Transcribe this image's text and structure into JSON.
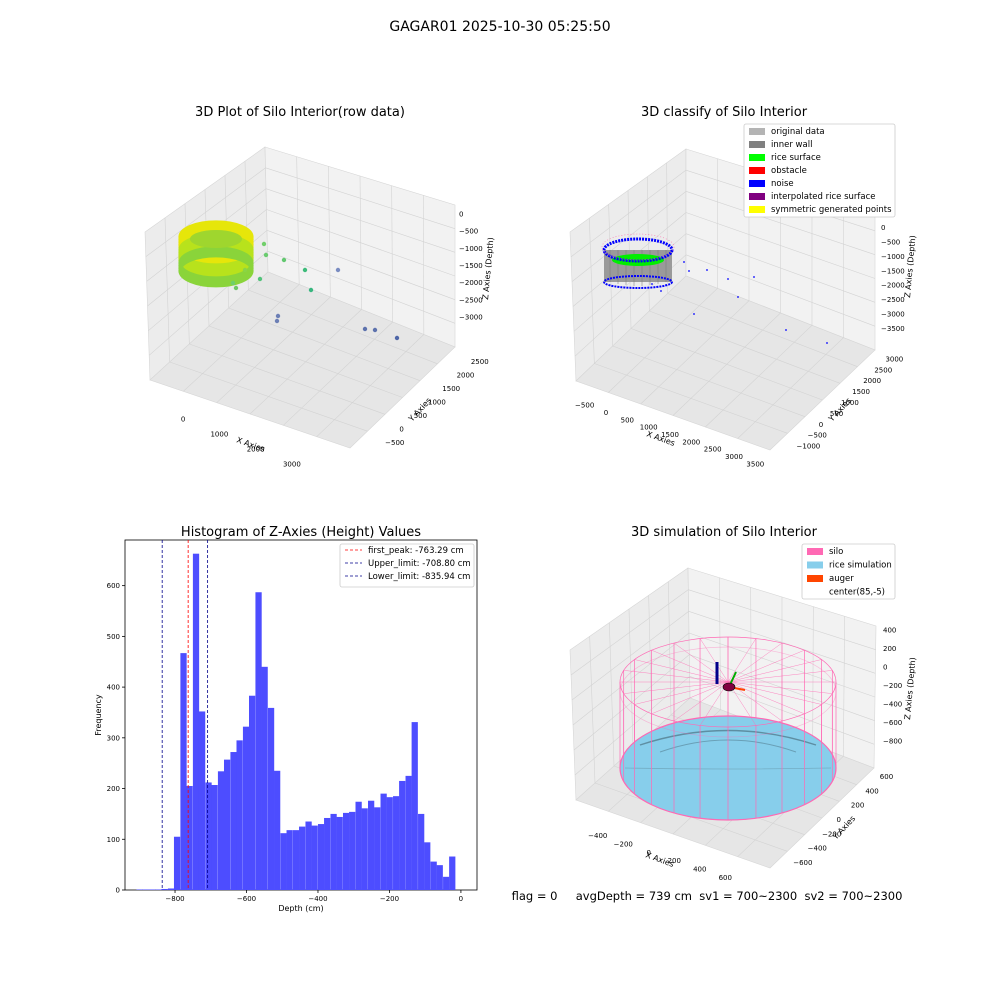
{
  "figure": {
    "title": "GAGAR01 2025-10-30 05:25:50",
    "footer": "flag = 0     avgDepth = 739 cm  sv1 = 700~2300  sv2 = 700~2300"
  },
  "panels": {
    "raw": {
      "title": "3D Plot of Silo Interior(row data)",
      "xlabel": "X Axies",
      "ylabel": "Y Axies",
      "zlabel": "Z Axies (Depth)",
      "xticks": [
        "0",
        "1000",
        "2000",
        "3000"
      ],
      "yticks": [
        "-500",
        "0",
        "500",
        "1000",
        "1500",
        "2000",
        "2500"
      ],
      "zticks": [
        "0",
        "-500",
        "-1000",
        "-1500",
        "-2000",
        "-2500",
        "-3000"
      ]
    },
    "classify": {
      "title": "3D classify of Silo Interior",
      "xlabel": "X Axies",
      "ylabel": "Y Axies",
      "zlabel": "Z Axies (Depth)",
      "xticks": [
        "-500",
        "0",
        "500",
        "1000",
        "1500",
        "2000",
        "2500",
        "3000",
        "3500"
      ],
      "yticks": [
        "-1000",
        "-500",
        "0",
        "500",
        "1000",
        "1500",
        "2000",
        "2500",
        "3000"
      ],
      "zticks": [
        "0",
        "-500",
        "-1000",
        "-1500",
        "-2000",
        "-2500",
        "-3000",
        "-3500"
      ],
      "legend": [
        {
          "label": "original data",
          "color": "#b4b4b4"
        },
        {
          "label": "inner wall",
          "color": "#808080"
        },
        {
          "label": "rice surface",
          "color": "#00ff00"
        },
        {
          "label": "obstacle",
          "color": "#ff0000"
        },
        {
          "label": "noise",
          "color": "#0000ff"
        },
        {
          "label": "interpolated rice surface",
          "color": "#800080"
        },
        {
          "label": "symmetric generated points",
          "color": "#ffff00"
        }
      ]
    },
    "histogram": {
      "title": "Histogram of Z-Axies (Height) Values",
      "xlabel": "Depth (cm)",
      "ylabel": "Frequency",
      "legend": [
        {
          "label": "first_peak: -763.29 cm",
          "color": "#ff0000"
        },
        {
          "label": "Upper_limit: -708.80 cm",
          "color": "#00008b"
        },
        {
          "label": "Lower_limit: -835.94 cm",
          "color": "#00008b"
        }
      ]
    },
    "sim": {
      "title": "3D simulation of Silo Interior",
      "xlabel": "X Axies",
      "ylabel": "Y Axies",
      "zlabel": "Z Axies (Depth)",
      "xticks": [
        "-400",
        "-200",
        "0",
        "200",
        "400",
        "600"
      ],
      "yticks": [
        "-600",
        "-400",
        "-200",
        "0",
        "200",
        "400",
        "600"
      ],
      "zticks": [
        "400",
        "200",
        "0",
        "-200",
        "-400",
        "-600",
        "-800"
      ],
      "legend": [
        {
          "label": "silo",
          "color": "#ff69b4"
        },
        {
          "label": "rice simulation",
          "color": "#87ceeb"
        },
        {
          "label": "auger",
          "color": "#ff4500"
        },
        {
          "label": "center(85,-5)",
          "color": "#ffffff"
        }
      ]
    }
  },
  "chart_data": {
    "type": "bar",
    "title": "Histogram of Z-Axies (Height) Values",
    "xlabel": "Depth (cm)",
    "ylabel": "Frequency",
    "xlim": [
      -940,
      45
    ],
    "ylim": [
      0,
      690
    ],
    "xticks": [
      -800,
      -600,
      -400,
      -200,
      0
    ],
    "yticks": [
      0,
      100,
      200,
      300,
      400,
      500,
      600
    ],
    "bin_width": 17.5,
    "bins": [
      [
        -908,
        1
      ],
      [
        -890,
        1
      ],
      [
        -873,
        1
      ],
      [
        -855,
        1
      ],
      [
        -838,
        2
      ],
      [
        -820,
        3
      ],
      [
        -803,
        105
      ],
      [
        -785,
        467
      ],
      [
        -768,
        205
      ],
      [
        -750,
        663
      ],
      [
        -733,
        352
      ],
      [
        -715,
        212
      ],
      [
        -698,
        207
      ],
      [
        -680,
        234
      ],
      [
        -663,
        257
      ],
      [
        -645,
        272
      ],
      [
        -628,
        295
      ],
      [
        -610,
        322
      ],
      [
        -593,
        383
      ],
      [
        -575,
        587
      ],
      [
        -558,
        440
      ],
      [
        -540,
        359
      ],
      [
        -523,
        235
      ],
      [
        -505,
        112
      ],
      [
        -488,
        118
      ],
      [
        -470,
        118
      ],
      [
        -453,
        125
      ],
      [
        -435,
        135
      ],
      [
        -418,
        127
      ],
      [
        -400,
        130
      ],
      [
        -383,
        142
      ],
      [
        -365,
        150
      ],
      [
        -348,
        144
      ],
      [
        -330,
        152
      ],
      [
        -313,
        154
      ],
      [
        -295,
        174
      ],
      [
        -278,
        161
      ],
      [
        -260,
        176
      ],
      [
        -243,
        163
      ],
      [
        -225,
        190
      ],
      [
        -208,
        183
      ],
      [
        -190,
        185
      ],
      [
        -173,
        215
      ],
      [
        -155,
        225
      ],
      [
        -138,
        331
      ],
      [
        -120,
        150
      ],
      [
        -103,
        94
      ],
      [
        -85,
        56
      ],
      [
        -68,
        49
      ],
      [
        -50,
        26
      ],
      [
        -33,
        66
      ]
    ],
    "lines": [
      {
        "name": "first_peak",
        "x": -763.29,
        "color": "#ff0000"
      },
      {
        "name": "Upper_limit",
        "x": -708.8,
        "color": "#00008b"
      },
      {
        "name": "Lower_limit",
        "x": -835.94,
        "color": "#00008b"
      }
    ]
  }
}
